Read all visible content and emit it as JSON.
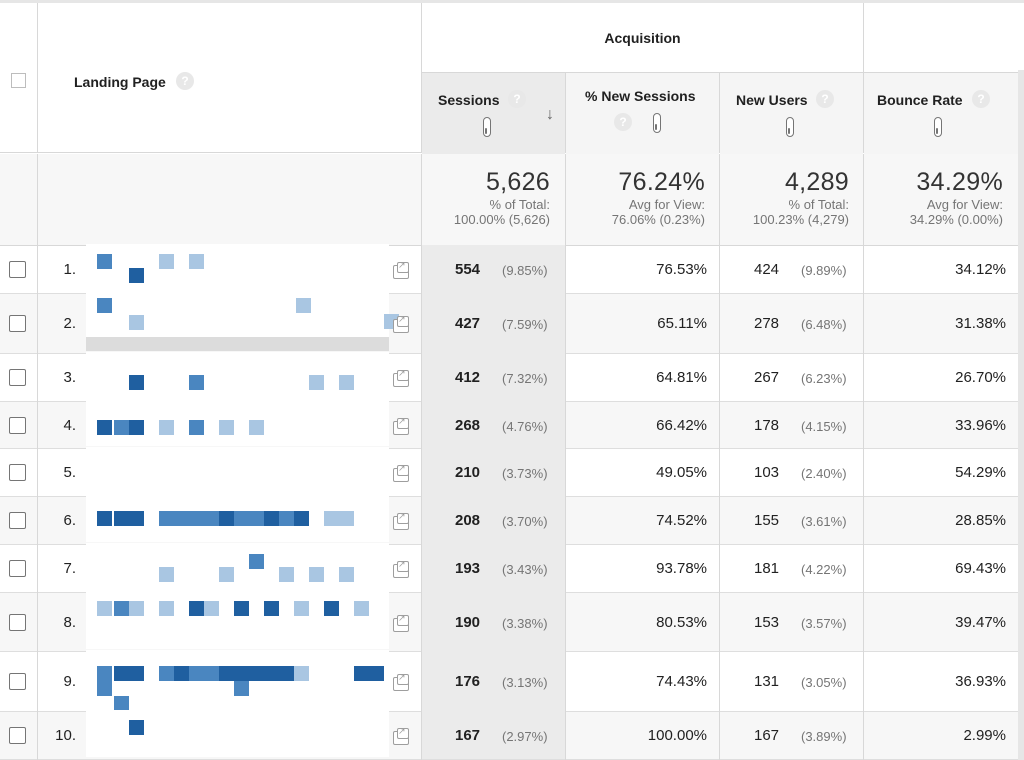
{
  "header": {
    "landing_label": "Landing Page",
    "group_label": "Acquisition",
    "qmark": "?",
    "columns": [
      {
        "label": "Sessions"
      },
      {
        "label": "% New Sessions"
      },
      {
        "label": "New Users"
      },
      {
        "label": "Bounce Rate"
      }
    ],
    "sort_arrow": "↓"
  },
  "totals": {
    "sessions": {
      "value": "5,626",
      "line1": "% of Total:",
      "line2": "100.00% (5,626)"
    },
    "new_sessions": {
      "value": "76.24%",
      "line1": "Avg for View:",
      "line2": "76.06% (0.23%)"
    },
    "new_users": {
      "value": "4,289",
      "line1": "% of Total:",
      "line2": "100.23% (4,279)"
    },
    "bounce_rate": {
      "value": "34.29%",
      "line1": "Avg for View:",
      "line2": "34.29% (0.00%)"
    }
  },
  "rows": [
    {
      "idx": "1.",
      "sessions": "554",
      "sessions_pct": "(9.85%)",
      "new_sessions": "76.53%",
      "new_users": "424",
      "new_users_pct": "(9.89%)",
      "bounce": "34.12%"
    },
    {
      "idx": "2.",
      "sessions": "427",
      "sessions_pct": "(7.59%)",
      "new_sessions": "65.11%",
      "new_users": "278",
      "new_users_pct": "(6.48%)",
      "bounce": "31.38%"
    },
    {
      "idx": "3.",
      "sessions": "412",
      "sessions_pct": "(7.32%)",
      "new_sessions": "64.81%",
      "new_users": "267",
      "new_users_pct": "(6.23%)",
      "bounce": "26.70%"
    },
    {
      "idx": "4.",
      "sessions": "268",
      "sessions_pct": "(4.76%)",
      "new_sessions": "66.42%",
      "new_users": "178",
      "new_users_pct": "(4.15%)",
      "bounce": "33.96%"
    },
    {
      "idx": "5.",
      "sessions": "210",
      "sessions_pct": "(3.73%)",
      "new_sessions": "49.05%",
      "new_users": "103",
      "new_users_pct": "(2.40%)",
      "bounce": "54.29%"
    },
    {
      "idx": "6.",
      "sessions": "208",
      "sessions_pct": "(3.70%)",
      "new_sessions": "74.52%",
      "new_users": "155",
      "new_users_pct": "(3.61%)",
      "bounce": "28.85%"
    },
    {
      "idx": "7.",
      "sessions": "193",
      "sessions_pct": "(3.43%)",
      "new_sessions": "93.78%",
      "new_users": "181",
      "new_users_pct": "(4.22%)",
      "bounce": "69.43%"
    },
    {
      "idx": "8.",
      "sessions": "190",
      "sessions_pct": "(3.38%)",
      "new_sessions": "80.53%",
      "new_users": "153",
      "new_users_pct": "(3.57%)",
      "bounce": "39.47%"
    },
    {
      "idx": "9.",
      "sessions": "176",
      "sessions_pct": "(3.13%)",
      "new_sessions": "74.43%",
      "new_users": "131",
      "new_users_pct": "(3.05%)",
      "bounce": "36.93%"
    },
    {
      "idx": "10.",
      "sessions": "167",
      "sessions_pct": "(2.97%)",
      "new_sessions": "100.00%",
      "new_users": "167",
      "new_users_pct": "(3.89%)",
      "bounce": "2.99%"
    }
  ],
  "colors": {
    "pixel_dark": "#1f5fa0",
    "pixel_mid": "#4a86c0",
    "pixel_light": "#a9c6e2"
  }
}
